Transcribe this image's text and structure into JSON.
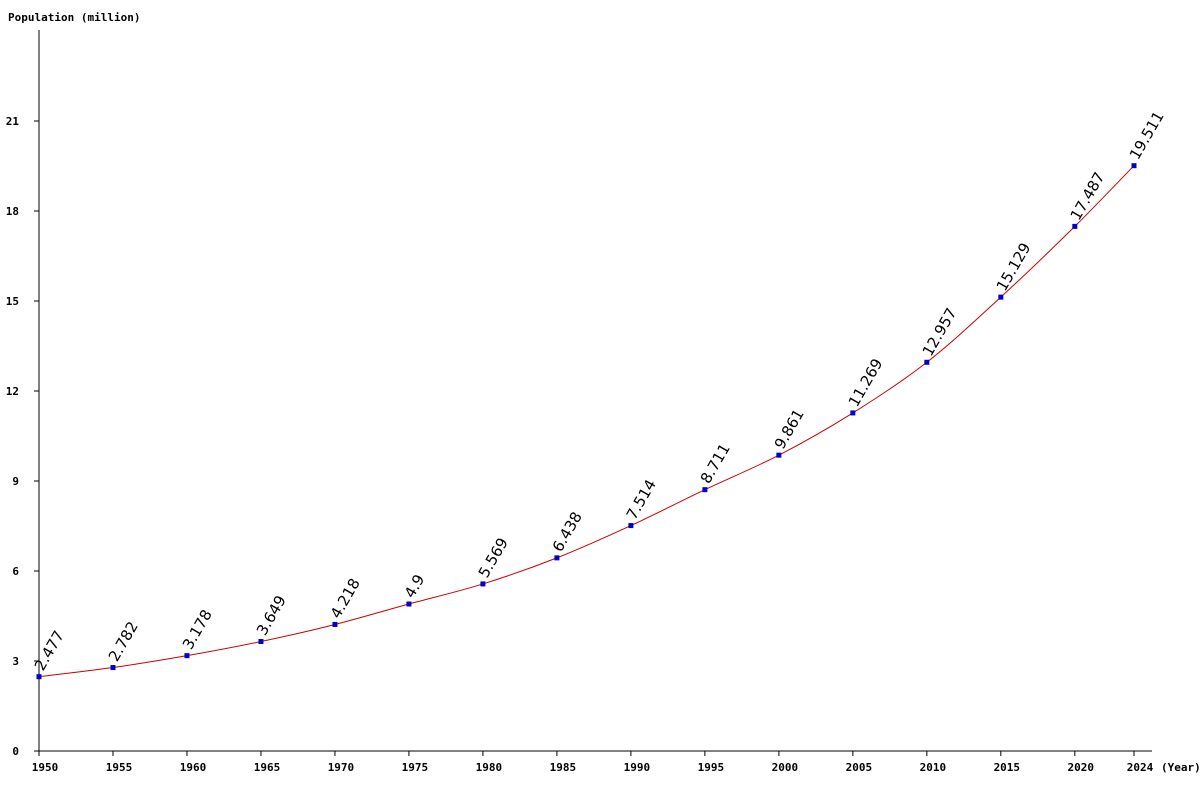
{
  "chart_data": {
    "type": "line",
    "ylabel": "Population (million)",
    "xlabel": "(Year)",
    "x": [
      1950,
      1955,
      1960,
      1965,
      1970,
      1975,
      1980,
      1985,
      1990,
      1995,
      2000,
      2005,
      2010,
      2015,
      2020,
      2024
    ],
    "series": [
      {
        "values": [
          2.477,
          2.782,
          3.178,
          3.649,
          4.218,
          4.9,
          5.569,
          6.438,
          7.514,
          8.711,
          9.861,
          11.269,
          12.957,
          15.129,
          17.487,
          19.511
        ]
      }
    ],
    "data_labels": [
      "2.477",
      "2.782",
      "3.178",
      "3.649",
      "4.218",
      "4.9",
      "5.569",
      "6.438",
      "7.514",
      "8.711",
      "9.861",
      "11.269",
      "12.957",
      "15.129",
      "17.487",
      "19.511"
    ],
    "y_ticks": [
      0,
      3,
      6,
      9,
      12,
      15,
      18,
      21
    ],
    "x_ticks": [
      1950,
      1955,
      1960,
      1965,
      1970,
      1975,
      1980,
      1985,
      1990,
      1995,
      2000,
      2005,
      2010,
      2015,
      2020,
      2024
    ],
    "ylim": [
      0,
      24
    ],
    "xlim": [
      1950,
      2024
    ],
    "grid": false,
    "legend": "none",
    "colors": {
      "line": "#cc0000",
      "markers": "#0000cc",
      "axes": "#000000",
      "background": "#ffffff"
    }
  }
}
